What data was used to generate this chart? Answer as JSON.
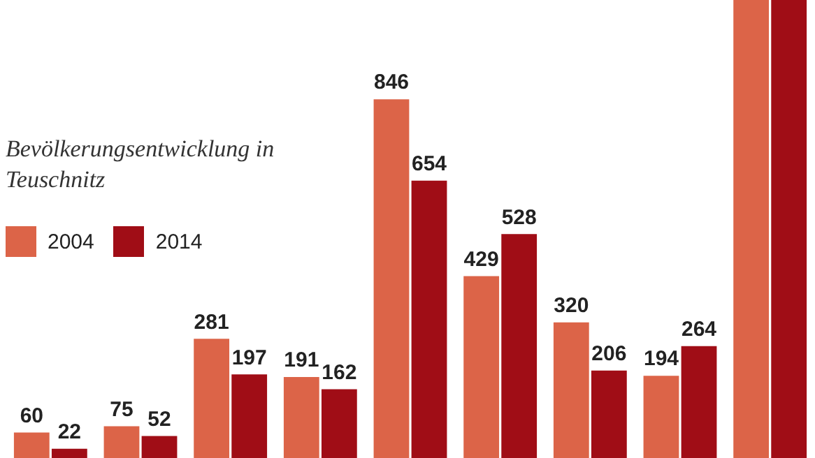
{
  "chart_data": {
    "type": "bar",
    "title": "Bevölkerungsentwicklung in Teuschnitz",
    "categories": [
      null,
      null,
      null,
      null,
      null,
      null,
      null,
      null,
      null
    ],
    "series": [
      {
        "name": "2004",
        "color": "#dc6448",
        "values": [
          60,
          75,
          281,
          191,
          846,
          429,
          320,
          194,
          1080
        ],
        "value_labels": [
          "60",
          "75",
          "281",
          "191",
          "846",
          "429",
          "320",
          "194",
          null
        ]
      },
      {
        "name": "2014",
        "color": "#a00d16",
        "values": [
          22,
          52,
          197,
          162,
          654,
          528,
          206,
          264,
          1080
        ],
        "value_labels": [
          "22",
          "52",
          "197",
          "162",
          "654",
          "528",
          "206",
          "264",
          null
        ]
      }
    ],
    "legend": "left"
  }
}
